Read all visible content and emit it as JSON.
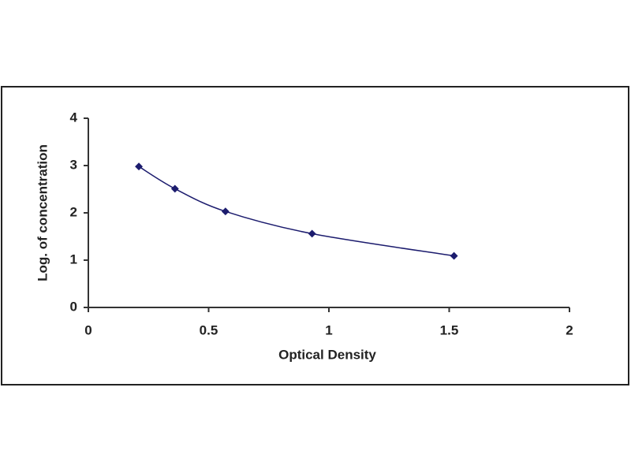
{
  "chart_data": {
    "type": "scatter",
    "x_label": "Optical Density",
    "y_label": "Log. of concentration",
    "x": [
      0.21,
      0.36,
      0.57,
      0.93,
      1.52
    ],
    "values": [
      2.98,
      2.51,
      2.03,
      1.56,
      1.09
    ],
    "color": "#1c1c6e",
    "curve": "smooth",
    "xlim": [
      0,
      2
    ],
    "xticks": [
      0,
      0.5,
      1,
      1.5,
      2
    ],
    "ylim": [
      0,
      4
    ],
    "yticks": [
      0,
      1,
      2,
      3,
      4
    ],
    "grid": false
  }
}
